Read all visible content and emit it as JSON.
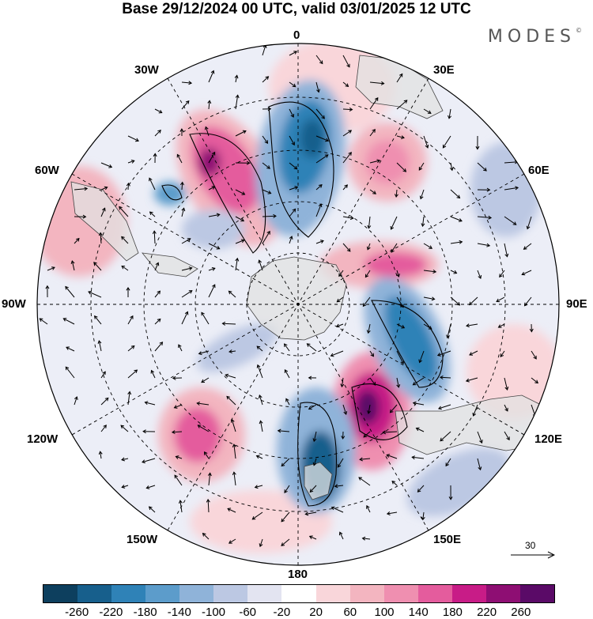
{
  "title": "Base 29/12/2024 00 UTC, valid 03/01/2025 12 UTC",
  "brand": "MODES",
  "brand_mark": "©",
  "longitude_labels": {
    "n": "0",
    "ne": "30E",
    "e60": "60E",
    "e": "90E",
    "se120": "120E",
    "se150": "150E",
    "s": "180",
    "sw150": "150W",
    "sw120": "120W",
    "w": "90W",
    "w60": "60W",
    "nw": "30W"
  },
  "reference_vector": {
    "label": "30"
  },
  "colorbar": {
    "colors": [
      "#0d3f5e",
      "#175f8c",
      "#2f82b7",
      "#5c9ccb",
      "#8fb3d9",
      "#bcc8e3",
      "#e3e4f1",
      "#ffffff",
      "#f9d6da",
      "#f3b5c0",
      "#ef8fb0",
      "#e45c9d",
      "#c81c87",
      "#8e0e73",
      "#5a0a67"
    ],
    "ticks": [
      "-260",
      "-220",
      "-180",
      "-140",
      "-100",
      "-60",
      "-20",
      "20",
      "60",
      "100",
      "140",
      "180",
      "220",
      "260"
    ]
  },
  "colors": {
    "land": "#e8e8e8",
    "grid": "#000000"
  }
}
